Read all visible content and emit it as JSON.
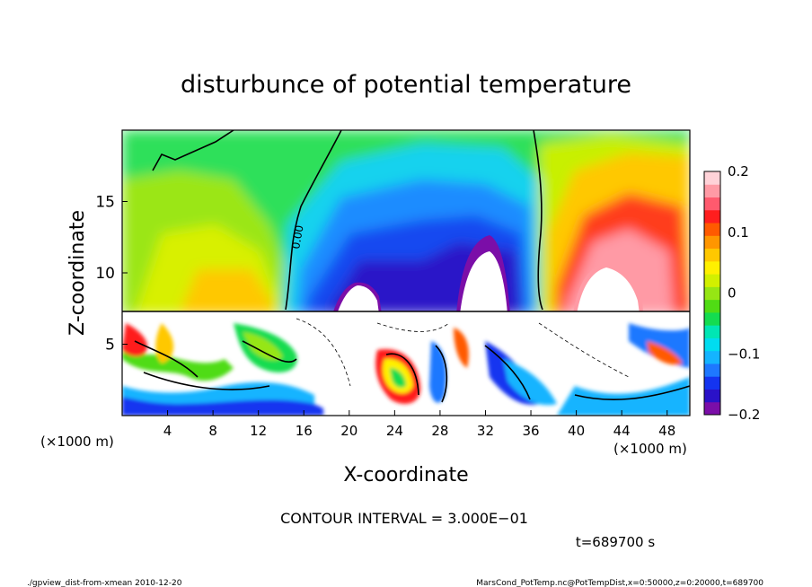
{
  "chart_data": {
    "type": "heatmap",
    "title": "disturbunce of potential temperature",
    "xlabel": "X-coordinate",
    "ylabel": "Z-coordinate",
    "x_unit": "(×1000 m)",
    "z_unit": "(×1000 m)",
    "xlim": [
      0,
      50
    ],
    "ylim": [
      0,
      20
    ],
    "x_ticks": [
      "4",
      "8",
      "12",
      "16",
      "20",
      "24",
      "28",
      "32",
      "36",
      "40",
      "44",
      "48"
    ],
    "y_ticks": [
      "5",
      "10",
      "15"
    ],
    "colorbar": {
      "range": [
        -0.2,
        0.2
      ],
      "tick_labels": [
        "0.2",
        "0.1",
        "0",
        "−0.1",
        "−0.2"
      ],
      "colors": [
        "#7b0ea8",
        "#2a12c8",
        "#1434f0",
        "#1e78ff",
        "#14b4ff",
        "#00dcf0",
        "#00e6b4",
        "#14dc50",
        "#50dc14",
        "#96e614",
        "#d2f000",
        "#fff000",
        "#ffc800",
        "#ff9600",
        "#ff5a00",
        "#ff1e1e",
        "#ff5a6e",
        "#ff9aa5",
        "#ffd2d8"
      ]
    },
    "contour_label": "0.00",
    "contour_interval": "CONTOUR INTERVAL = 3.000E−01",
    "time": "t=689700 s",
    "features": [
      {
        "x": 21,
        "z_top": 9.5,
        "kind": "warm-core",
        "halo": "negative"
      },
      {
        "x": 32,
        "z_top": 11.5,
        "kind": "warm-core",
        "halo": "negative"
      },
      {
        "x": 42,
        "z_top": 10.5,
        "kind": "warm-core",
        "halo": "positive"
      }
    ],
    "layer_top_z": 7.4
  },
  "footer": {
    "left": "./gpview_dist-from-xmean  2010-12-20",
    "right": "MarsCond_PotTemp.nc@PotTempDist,x=0:50000,z=0:20000,t=689700"
  }
}
